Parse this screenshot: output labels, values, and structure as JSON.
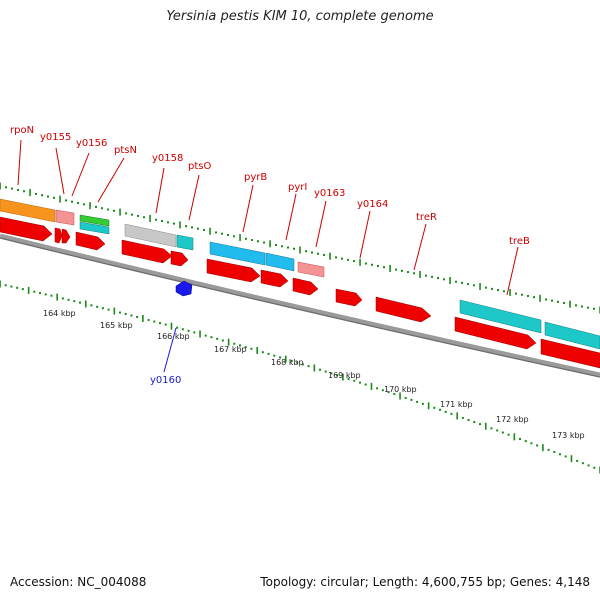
{
  "title": "Yersinia pestis KIM 10, complete genome",
  "footer": {
    "accession": "Accession: NC_004088",
    "topology": "Topology: circular; Length: 4,600,755 bp; Genes: 4,148"
  },
  "colors": {
    "cds": "#ee0000",
    "orange": "#f7941d",
    "salmon": "#f49393",
    "green": "#33cc33",
    "cyan": "#1ec8c8",
    "gray": "#c0c0c0",
    "blue": "#22bbee",
    "reverse": "#1a1aee",
    "tick": "#1a8a1a"
  },
  "kbp_labels": [
    "164 kbp",
    "165 kbp",
    "166 kbp",
    "167 kbp",
    "168 kbp",
    "169 kbp",
    "170 kbp",
    "171 kbp",
    "172 kbp",
    "173 kbp"
  ],
  "gene_labels": [
    {
      "name": "rpoN",
      "strand": "forward"
    },
    {
      "name": "y0155",
      "strand": "forward"
    },
    {
      "name": "y0156",
      "strand": "forward"
    },
    {
      "name": "ptsN",
      "strand": "forward"
    },
    {
      "name": "y0158",
      "strand": "forward"
    },
    {
      "name": "ptsO",
      "strand": "forward"
    },
    {
      "name": "pyrB",
      "strand": "forward"
    },
    {
      "name": "pyrI",
      "strand": "forward"
    },
    {
      "name": "y0163",
      "strand": "forward"
    },
    {
      "name": "y0164",
      "strand": "forward"
    },
    {
      "name": "treR",
      "strand": "forward"
    },
    {
      "name": "treB",
      "strand": "forward"
    },
    {
      "name": "y0160",
      "strand": "reverse"
    }
  ]
}
